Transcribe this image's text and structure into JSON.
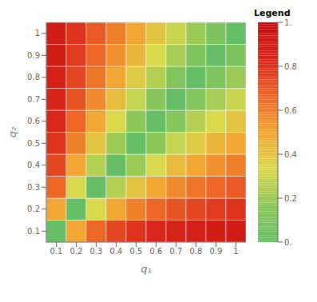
{
  "chart_data": {
    "type": "heatmap",
    "title": "Legend",
    "xlabel": "q₁",
    "ylabel": "q₂",
    "x": [
      0.1,
      0.2,
      0.3,
      0.4,
      0.5,
      0.6,
      0.7,
      0.8,
      0.9,
      1
    ],
    "y": [
      0.1,
      0.2,
      0.3,
      0.4,
      0.5,
      0.6,
      0.7,
      0.8,
      0.9,
      1
    ],
    "xlim": [
      0.05,
      1.05
    ],
    "ylim": [
      0.05,
      1.05
    ],
    "xticks": [
      0.1,
      0.2,
      0.3,
      0.4,
      0.5,
      0.6,
      0.7,
      0.8,
      0.9,
      1
    ],
    "yticks": [
      0.1,
      0.2,
      0.3,
      0.4,
      0.5,
      0.6,
      0.7,
      0.8,
      0.9,
      1
    ],
    "values": [
      [
        0,
        0.5,
        0.6666666666666666,
        0.75,
        0.8,
        0.8333333333333334,
        0.8571428571428571,
        0.875,
        0.8888888888888888,
        0.9
      ],
      [
        0.5,
        0,
        0.3333333333333333,
        0.5,
        0.6,
        0.6666666666666666,
        0.7142857142857143,
        0.75,
        0.7777777777777778,
        0.8
      ],
      [
        0.6666666666666666,
        0.3333333333333333,
        0,
        0.25,
        0.4,
        0.5,
        0.5714285714285714,
        0.625,
        0.6666666666666666,
        0.7
      ],
      [
        0.75,
        0.5,
        0.25,
        0,
        0.2,
        0.3333333333333333,
        0.42857142857142855,
        0.5,
        0.5555555555555556,
        0.6
      ],
      [
        0.8,
        0.6,
        0.4,
        0.2,
        0,
        0.16666666666666666,
        0.2857142857142857,
        0.375,
        0.4444444444444444,
        0.5
      ],
      [
        0.8333333333333334,
        0.6666666666666666,
        0.5,
        0.3333333333333333,
        0.16666666666666666,
        0,
        0.14285714285714285,
        0.25,
        0.3333333333333333,
        0.4
      ],
      [
        0.8571428571428571,
        0.7142857142857143,
        0.5714285714285714,
        0.42857142857142855,
        0.2857142857142857,
        0.14285714285714285,
        0,
        0.125,
        0.2222222222222222,
        0.3
      ],
      [
        0.875,
        0.75,
        0.625,
        0.5,
        0.375,
        0.25,
        0.125,
        0,
        0.1111111111111111,
        0.2
      ],
      [
        0.8888888888888888,
        0.7777777777777778,
        0.6666666666666666,
        0.5555555555555556,
        0.4444444444444444,
        0.3333333333333333,
        0.2222222222222222,
        0.1111111111111111,
        0,
        0.1
      ],
      [
        0.9,
        0.8,
        0.7,
        0.6,
        0.5,
        0.4,
        0.3,
        0.2,
        0.1,
        0
      ]
    ],
    "colorbar_range": [
      0,
      1
    ],
    "colorbar_ticks": [
      {
        "value": 0,
        "label": "0."
      },
      0.2,
      0.4,
      0.6,
      0.8,
      {
        "value": 1,
        "label": "1."
      }
    ]
  }
}
